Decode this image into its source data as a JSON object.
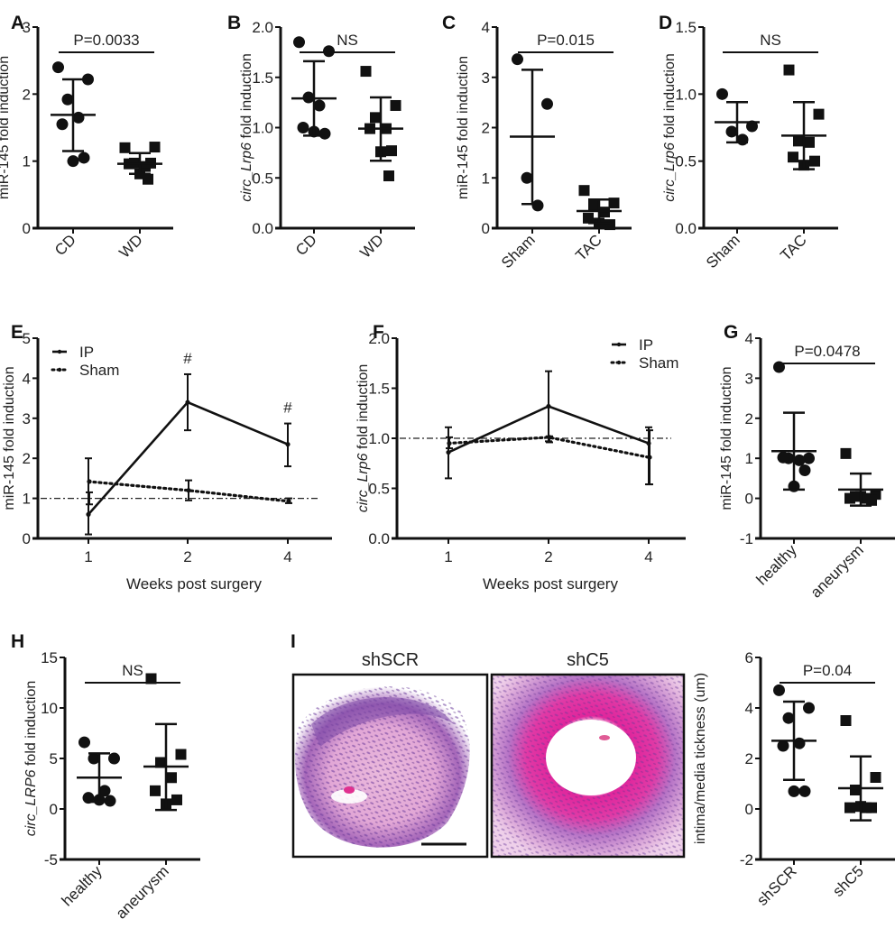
{
  "figure": {
    "panel_labels": [
      "A",
      "B",
      "C",
      "D",
      "E",
      "F",
      "G",
      "H",
      "I"
    ],
    "histology": {
      "titles": [
        "shSCR",
        "shC5"
      ],
      "description": [
        "H&E stained vessel section, shSCR (thickened neointima)",
        "H&E stained vessel section, shC5 (open lumen)"
      ],
      "scale_bar": true,
      "colors": {
        "tissue_light": "#e7b3de",
        "tissue_mid": "#d68ad0",
        "nuclei": "#6a3a9a",
        "media_pink": "#e8249c",
        "background": "#ffffff"
      }
    }
  },
  "chart_data": [
    {
      "id": "A",
      "type": "scatter",
      "title": "",
      "xlabel": "",
      "ylabel": "miR-145 fold induction",
      "ylim": [
        0,
        3
      ],
      "yticks": [
        "0",
        "1",
        "2",
        "3"
      ],
      "categories": [
        "CD",
        "WD"
      ],
      "significance": "P=0.0033",
      "series": [
        {
          "name": "CD",
          "marker": "circle",
          "values": [
            2.4,
            2.22,
            1.92,
            1.65,
            1.55,
            1.05,
            1.0
          ],
          "mean": 1.69,
          "sd_low": 1.15,
          "sd_high": 2.22
        },
        {
          "name": "WD",
          "marker": "square",
          "values": [
            1.2,
            1.21,
            0.97,
            0.92,
            0.96,
            0.97,
            0.81,
            0.73
          ],
          "mean": 0.96,
          "sd_low": 0.81,
          "sd_high": 1.12
        }
      ]
    },
    {
      "id": "B",
      "type": "scatter",
      "title": "",
      "xlabel": "",
      "ylabel_prefix": "circ_",
      "ylabel_italic": "Lrp6",
      "ylabel_suffix": " fold induction",
      "ylim": [
        0,
        2
      ],
      "yticks": [
        "0.0",
        "0.5",
        "1.0",
        "1.5",
        "2.0"
      ],
      "categories": [
        "CD",
        "WD"
      ],
      "significance": "NS",
      "series": [
        {
          "name": "CD",
          "marker": "circle",
          "values": [
            1.85,
            1.76,
            1.3,
            1.22,
            1.0,
            0.94,
            0.96
          ],
          "mean": 1.29,
          "sd_low": 0.92,
          "sd_high": 1.66
        },
        {
          "name": "WD",
          "marker": "square",
          "values": [
            1.56,
            1.22,
            1.1,
            0.99,
            0.99,
            0.77,
            0.76,
            0.52
          ],
          "mean": 0.99,
          "sd_low": 0.67,
          "sd_high": 1.3
        }
      ]
    },
    {
      "id": "C",
      "type": "scatter",
      "title": "",
      "xlabel": "",
      "ylabel": "miR-145 fold induction",
      "ylim": [
        0,
        4
      ],
      "yticks": [
        "0",
        "1",
        "2",
        "3",
        "4"
      ],
      "categories": [
        "Sham",
        "TAC"
      ],
      "significance": "P=0.015",
      "series": [
        {
          "name": "Sham",
          "marker": "circle",
          "values": [
            3.36,
            2.47,
            1.0,
            0.45
          ],
          "mean": 1.82,
          "sd_low": 0.48,
          "sd_high": 3.15
        },
        {
          "name": "TAC",
          "marker": "square",
          "values": [
            0.75,
            0.5,
            0.45,
            0.32,
            0.2,
            0.07,
            0.1
          ],
          "mean": 0.34,
          "sd_low": 0.1,
          "sd_high": 0.57
        }
      ]
    },
    {
      "id": "D",
      "type": "scatter",
      "title": "",
      "xlabel": "",
      "ylabel_prefix": "circ_",
      "ylabel_italic": "Lrp6",
      "ylabel_suffix": " fold induction",
      "ylim": [
        0,
        1.5
      ],
      "yticks": [
        "0.0",
        "0.5",
        "1.0",
        "1.5"
      ],
      "categories": [
        "Sham",
        "TAC"
      ],
      "significance": "NS",
      "series": [
        {
          "name": "Sham",
          "marker": "circle",
          "values": [
            1.0,
            0.76,
            0.72,
            0.66
          ],
          "mean": 0.79,
          "sd_low": 0.64,
          "sd_high": 0.94
        },
        {
          "name": "TAC",
          "marker": "square",
          "values": [
            1.18,
            0.85,
            0.65,
            0.64,
            0.53,
            0.5,
            0.47
          ],
          "mean": 0.69,
          "sd_low": 0.44,
          "sd_high": 0.94
        }
      ]
    },
    {
      "id": "E",
      "type": "line",
      "title": "",
      "xlabel": "Weeks post surgery",
      "ylabel": "miR-145 fold induction",
      "ylim": [
        0,
        5
      ],
      "yticks": [
        "0",
        "1",
        "2",
        "3",
        "4",
        "5"
      ],
      "x": [
        "1",
        "2",
        "4"
      ],
      "reference_line": 1.0,
      "legend": "top-left",
      "annotations": [
        {
          "x": "2",
          "text": "#"
        },
        {
          "x": "4",
          "text": "#"
        }
      ],
      "series": [
        {
          "name": "IP",
          "style": "solid",
          "values": [
            0.6,
            3.4,
            2.35
          ],
          "err_low": [
            0.1,
            2.7,
            1.8
          ],
          "err_high": [
            2.0,
            4.1,
            2.87
          ]
        },
        {
          "name": "Sham",
          "style": "dotted",
          "values": [
            1.42,
            1.2,
            0.93
          ],
          "err_low": [
            0.85,
            0.95,
            0.88
          ],
          "err_high": [
            1.15,
            1.45,
            1.0
          ]
        }
      ]
    },
    {
      "id": "F",
      "type": "line",
      "title": "",
      "xlabel": "Weeks post surgery",
      "ylabel_prefix": "circ_",
      "ylabel_italic": "Lrp6",
      "ylabel_suffix": " fold induction",
      "ylim": [
        0,
        2
      ],
      "yticks": [
        "0.0",
        "0.5",
        "1.0",
        "1.5",
        "2.0"
      ],
      "x": [
        "1",
        "2",
        "4"
      ],
      "reference_line": 1.0,
      "legend": "top-right",
      "series": [
        {
          "name": "IP",
          "style": "solid",
          "values": [
            0.86,
            1.32,
            0.95
          ],
          "err_low": [
            0.6,
            0.97,
            0.54
          ],
          "err_high": [
            1.11,
            1.67,
            1.11
          ]
        },
        {
          "name": "Sham",
          "style": "dotted",
          "values": [
            0.95,
            1.01,
            0.81
          ],
          "err_low": [
            0.9,
            0.96,
            0.54
          ],
          "err_high": [
            1.01,
            1.02,
            1.08
          ]
        }
      ]
    },
    {
      "id": "G",
      "type": "scatter",
      "title": "",
      "xlabel": "",
      "ylabel": "miR-145 fold induction",
      "ylim": [
        -1,
        4
      ],
      "yticks": [
        "-1",
        "0",
        "1",
        "2",
        "3",
        "4"
      ],
      "categories": [
        "healthy",
        "aneurysm"
      ],
      "significance": "P=0.0478",
      "series": [
        {
          "name": "healthy",
          "marker": "circle",
          "values": [
            3.28,
            1.0,
            1.0,
            0.95,
            1.02,
            0.7,
            0.3
          ],
          "mean": 1.18,
          "sd_low": 0.22,
          "sd_high": 2.14
        },
        {
          "name": "aneurysm",
          "marker": "square",
          "values": [
            1.12,
            0.1,
            0.05,
            0.0,
            0.0,
            -0.05,
            0.05
          ],
          "mean": 0.22,
          "sd_low": -0.18,
          "sd_high": 0.62
        }
      ]
    },
    {
      "id": "H",
      "type": "scatter",
      "title": "",
      "xlabel": "",
      "ylabel_prefix": "circ_",
      "ylabel_italic": "LRP6",
      "ylabel_suffix": " fold induction",
      "ylim": [
        -5,
        15
      ],
      "yticks": [
        "-5",
        "0",
        "5",
        "10",
        "15"
      ],
      "categories": [
        "healthy",
        "aneurysm"
      ],
      "significance": "NS",
      "series": [
        {
          "name": "healthy",
          "marker": "circle",
          "values": [
            6.6,
            5.0,
            5.0,
            1.8,
            1.1,
            0.8,
            0.9
          ],
          "mean": 3.1,
          "sd_low": 0.7,
          "sd_high": 5.5
        },
        {
          "name": "aneurysm",
          "marker": "square",
          "values": [
            12.9,
            5.4,
            4.6,
            3.1,
            1.8,
            0.9,
            0.5
          ],
          "mean": 4.2,
          "sd_low": -0.1,
          "sd_high": 8.4
        }
      ]
    },
    {
      "id": "I",
      "type": "scatter",
      "title": "",
      "xlabel": "",
      "ylabel": "intima/media tickness (um)",
      "ylim": [
        -2,
        6
      ],
      "yticks": [
        "-2",
        "0",
        "2",
        "4",
        "6"
      ],
      "categories": [
        "shSCR",
        "shC5"
      ],
      "significance": "P=0.04",
      "series": [
        {
          "name": "shSCR",
          "marker": "circle",
          "values": [
            4.7,
            4.0,
            3.6,
            2.6,
            2.5,
            0.7,
            0.7
          ],
          "mean": 2.7,
          "sd_low": 1.15,
          "sd_high": 4.25
        },
        {
          "name": "shC5",
          "marker": "square",
          "values": [
            3.5,
            1.25,
            0.75,
            0.05,
            0.05,
            0.05,
            0.1
          ],
          "mean": 0.82,
          "sd_low": -0.45,
          "sd_high": 2.08
        }
      ]
    }
  ]
}
